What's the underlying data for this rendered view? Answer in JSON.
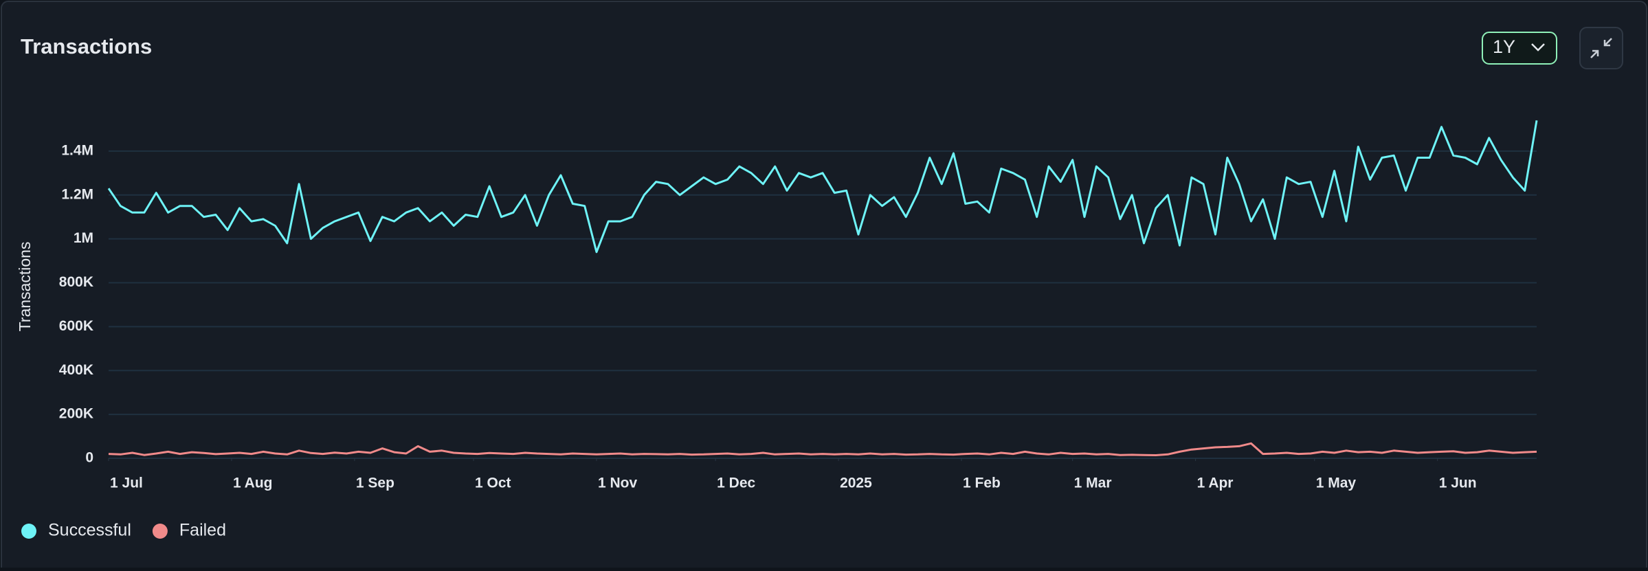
{
  "chart_data": {
    "type": "line",
    "title": "Transactions",
    "ylabel": "Transactions",
    "range_selector": "1Y",
    "x": [
      "2024-07-01",
      "2024-07-04",
      "2024-07-07",
      "2024-07-10",
      "2024-07-13",
      "2024-07-16",
      "2024-07-19",
      "2024-07-22",
      "2024-07-25",
      "2024-07-28",
      "2024-07-31",
      "2024-08-03",
      "2024-08-06",
      "2024-08-09",
      "2024-08-12",
      "2024-08-15",
      "2024-08-18",
      "2024-08-21",
      "2024-08-24",
      "2024-08-27",
      "2024-08-30",
      "2024-09-02",
      "2024-09-05",
      "2024-09-08",
      "2024-09-11",
      "2024-09-14",
      "2024-09-17",
      "2024-09-20",
      "2024-09-23",
      "2024-09-26",
      "2024-09-29",
      "2024-10-02",
      "2024-10-05",
      "2024-10-08",
      "2024-10-11",
      "2024-10-14",
      "2024-10-17",
      "2024-10-20",
      "2024-10-23",
      "2024-10-26",
      "2024-10-29",
      "2024-11-01",
      "2024-11-04",
      "2024-11-07",
      "2024-11-10",
      "2024-11-13",
      "2024-11-16",
      "2024-11-19",
      "2024-11-22",
      "2024-11-25",
      "2024-11-28",
      "2024-12-01",
      "2024-12-04",
      "2024-12-07",
      "2024-12-10",
      "2024-12-13",
      "2024-12-16",
      "2024-12-19",
      "2024-12-22",
      "2024-12-25",
      "2024-12-28",
      "2024-12-31",
      "2025-01-03",
      "2025-01-06",
      "2025-01-09",
      "2025-01-12",
      "2025-01-15",
      "2025-01-18",
      "2025-01-21",
      "2025-01-24",
      "2025-01-27",
      "2025-01-30",
      "2025-02-02",
      "2025-02-05",
      "2025-02-08",
      "2025-02-11",
      "2025-02-14",
      "2025-02-17",
      "2025-02-20",
      "2025-02-23",
      "2025-02-26",
      "2025-03-01",
      "2025-03-04",
      "2025-03-07",
      "2025-03-10",
      "2025-03-13",
      "2025-03-16",
      "2025-03-19",
      "2025-03-22",
      "2025-03-25",
      "2025-03-28",
      "2025-03-31",
      "2025-04-03",
      "2025-04-06",
      "2025-04-09",
      "2025-04-12",
      "2025-04-15",
      "2025-04-18",
      "2025-04-21",
      "2025-04-24",
      "2025-04-27",
      "2025-04-30",
      "2025-05-03",
      "2025-05-06",
      "2025-05-09",
      "2025-05-12",
      "2025-05-15",
      "2025-05-18",
      "2025-05-21",
      "2025-05-24",
      "2025-05-27",
      "2025-05-30",
      "2025-06-02",
      "2025-06-05",
      "2025-06-08",
      "2025-06-11",
      "2025-06-14",
      "2025-06-17",
      "2025-06-20",
      "2025-06-23",
      "2025-06-26"
    ],
    "series": [
      {
        "name": "Successful",
        "color": "#6ef3f7",
        "values": [
          1230000,
          1150000,
          1120000,
          1120000,
          1210000,
          1120000,
          1150000,
          1150000,
          1100000,
          1110000,
          1040000,
          1140000,
          1080000,
          1090000,
          1060000,
          980000,
          1250000,
          1000000,
          1050000,
          1080000,
          1100000,
          1120000,
          990000,
          1100000,
          1080000,
          1120000,
          1140000,
          1080000,
          1120000,
          1060000,
          1110000,
          1100000,
          1240000,
          1100000,
          1120000,
          1200000,
          1060000,
          1200000,
          1290000,
          1160000,
          1150000,
          940000,
          1080000,
          1080000,
          1100000,
          1200000,
          1260000,
          1250000,
          1200000,
          1240000,
          1280000,
          1250000,
          1270000,
          1330000,
          1300000,
          1250000,
          1330000,
          1220000,
          1300000,
          1280000,
          1300000,
          1210000,
          1220000,
          1020000,
          1200000,
          1150000,
          1190000,
          1100000,
          1210000,
          1370000,
          1250000,
          1390000,
          1160000,
          1170000,
          1120000,
          1320000,
          1300000,
          1270000,
          1100000,
          1330000,
          1260000,
          1360000,
          1100000,
          1330000,
          1280000,
          1090000,
          1200000,
          980000,
          1140000,
          1200000,
          970000,
          1280000,
          1250000,
          1020000,
          1370000,
          1250000,
          1080000,
          1180000,
          1000000,
          1280000,
          1250000,
          1260000,
          1100000,
          1310000,
          1080000,
          1420000,
          1270000,
          1370000,
          1380000,
          1220000,
          1370000,
          1370000,
          1510000,
          1380000,
          1370000,
          1340000,
          1460000,
          1360000,
          1280000,
          1220000,
          1540000
        ]
      },
      {
        "name": "Failed",
        "color": "#f08a8a",
        "values": [
          20000,
          18000,
          25000,
          15000,
          22000,
          30000,
          20000,
          28000,
          24000,
          19000,
          22000,
          25000,
          20000,
          30000,
          22000,
          18000,
          35000,
          24000,
          20000,
          26000,
          22000,
          30000,
          25000,
          45000,
          28000,
          22000,
          55000,
          30000,
          35000,
          25000,
          22000,
          20000,
          24000,
          22000,
          20000,
          25000,
          22000,
          20000,
          18000,
          22000,
          20000,
          18000,
          20000,
          22000,
          18000,
          20000,
          19000,
          18000,
          20000,
          17000,
          18000,
          20000,
          22000,
          18000,
          20000,
          25000,
          18000,
          20000,
          22000,
          18000,
          20000,
          18000,
          20000,
          18000,
          22000,
          18000,
          20000,
          17000,
          18000,
          20000,
          18000,
          17000,
          20000,
          22000,
          18000,
          25000,
          20000,
          30000,
          22000,
          18000,
          25000,
          20000,
          22000,
          18000,
          20000,
          15000,
          16000,
          15000,
          14000,
          18000,
          30000,
          40000,
          45000,
          50000,
          52000,
          55000,
          68000,
          20000,
          22000,
          25000,
          20000,
          22000,
          30000,
          25000,
          35000,
          28000,
          30000,
          25000,
          35000,
          30000,
          25000,
          28000,
          30000,
          32000,
          25000,
          28000,
          35000,
          30000,
          25000,
          28000,
          30000
        ]
      }
    ],
    "xlim": [
      "2024-07-01",
      "2025-06-26"
    ],
    "xticks": [
      {
        "value": "2024-07-01",
        "label": "1 Jul"
      },
      {
        "value": "2024-08-01",
        "label": "1 Aug"
      },
      {
        "value": "2024-09-01",
        "label": "1 Sep"
      },
      {
        "value": "2024-10-01",
        "label": "1 Oct"
      },
      {
        "value": "2024-11-01",
        "label": "1 Nov"
      },
      {
        "value": "2024-12-01",
        "label": "1 Dec"
      },
      {
        "value": "2025-01-01",
        "label": "2025"
      },
      {
        "value": "2025-02-01",
        "label": "1 Feb"
      },
      {
        "value": "2025-03-01",
        "label": "1 Mar"
      },
      {
        "value": "2025-04-01",
        "label": "1 Apr"
      },
      {
        "value": "2025-05-01",
        "label": "1 May"
      },
      {
        "value": "2025-06-01",
        "label": "1 Jun"
      }
    ],
    "ylim": [
      0,
      1600000
    ],
    "yticks": [
      0,
      {
        "value": 200000,
        "label": "200K"
      },
      {
        "value": 400000,
        "label": "400K"
      },
      {
        "value": 600000,
        "label": "600K"
      },
      {
        "value": 800000,
        "label": "800K"
      },
      {
        "value": 1000000,
        "label": "1M"
      },
      {
        "value": 1200000,
        "label": "1.2M"
      },
      {
        "value": 1400000,
        "label": "1.4M"
      }
    ],
    "grid": true,
    "legend": "bottom-left"
  }
}
